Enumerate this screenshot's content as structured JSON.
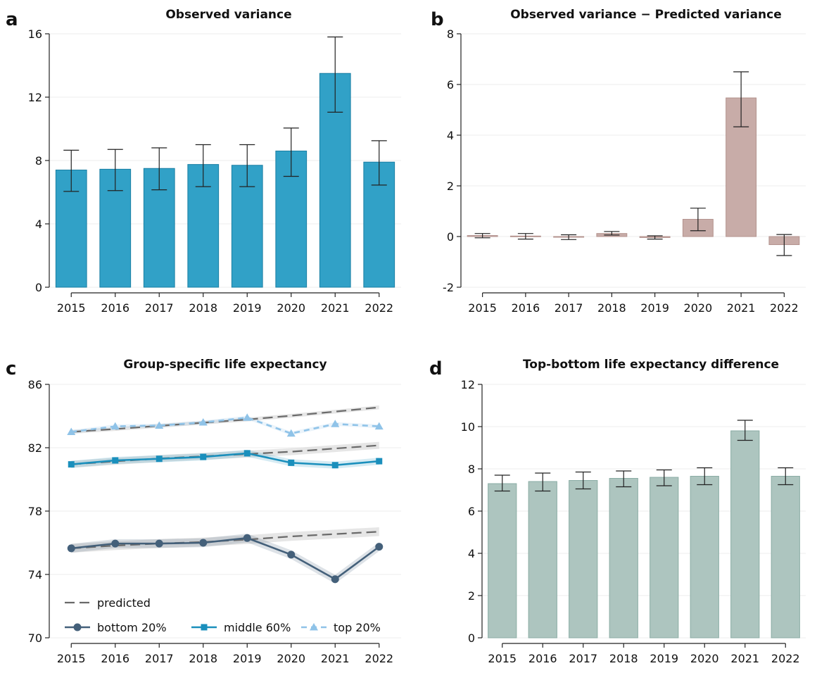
{
  "figure": {
    "panel_letters": [
      "a",
      "b",
      "c",
      "d"
    ]
  },
  "chart_data": [
    {
      "panel": "a",
      "type": "bar",
      "title": "Observed variance",
      "categories": [
        "2015",
        "2016",
        "2017",
        "2018",
        "2019",
        "2020",
        "2021",
        "2022"
      ],
      "values": [
        7.4,
        7.45,
        7.5,
        7.75,
        7.7,
        8.6,
        13.5,
        7.9
      ],
      "error_low": [
        6.05,
        6.1,
        6.15,
        6.35,
        6.35,
        7.0,
        11.05,
        6.45
      ],
      "error_high": [
        8.65,
        8.7,
        8.8,
        9.0,
        9.0,
        10.05,
        15.8,
        9.25
      ],
      "yticks": [
        0,
        4,
        8,
        12,
        16
      ],
      "ylim": [
        0,
        16
      ],
      "color": "#31a1c7",
      "edge_color": "#1a7fa3"
    },
    {
      "panel": "b",
      "type": "bar",
      "title": "Observed variance − Predicted variance",
      "categories": [
        "2015",
        "2016",
        "2017",
        "2018",
        "2019",
        "2020",
        "2021",
        "2022"
      ],
      "values": [
        0.04,
        0.02,
        -0.02,
        0.12,
        -0.04,
        0.68,
        5.47,
        -0.32
      ],
      "error_low": [
        -0.05,
        -0.1,
        -0.12,
        0.06,
        -0.1,
        0.23,
        4.33,
        -0.75
      ],
      "error_high": [
        0.12,
        0.12,
        0.07,
        0.2,
        0.03,
        1.12,
        6.5,
        0.08
      ],
      "yticks": [
        -2,
        0,
        2,
        4,
        6,
        8
      ],
      "ylim": [
        -2,
        8
      ],
      "color": "#c8aca8",
      "edge_color": "#b3928d"
    },
    {
      "panel": "c",
      "type": "line",
      "title": "Group-specific life expectancy",
      "x": [
        "2015",
        "2016",
        "2017",
        "2018",
        "2019",
        "2020",
        "2021",
        "2022"
      ],
      "yticks": [
        70,
        74,
        78,
        82,
        86
      ],
      "ylim": [
        70,
        86
      ],
      "series": [
        {
          "name": "top 20%",
          "marker": "triangle",
          "style": "dashed",
          "color": "#8fc3e8",
          "values": [
            83.0,
            83.35,
            83.4,
            83.6,
            83.9,
            82.9,
            83.5,
            83.35
          ],
          "predicted": [
            83.0,
            83.18,
            83.38,
            83.58,
            83.78,
            84.02,
            84.28,
            84.55
          ],
          "band": 0.12
        },
        {
          "name": "middle 60%",
          "marker": "square",
          "style": "solid",
          "color": "#1a8fbc",
          "values": [
            80.95,
            81.2,
            81.3,
            81.42,
            81.65,
            81.05,
            80.9,
            81.15
          ],
          "predicted": [
            80.95,
            81.14,
            81.32,
            81.46,
            81.6,
            81.75,
            81.95,
            82.15
          ],
          "band": 0.22
        },
        {
          "name": "bottom 20%",
          "marker": "circle",
          "style": "solid",
          "color": "#44607a",
          "values": [
            75.65,
            75.95,
            75.95,
            76.0,
            76.3,
            75.25,
            73.7,
            75.75
          ],
          "predicted": [
            75.65,
            75.82,
            75.95,
            76.05,
            76.2,
            76.4,
            76.55,
            76.7
          ],
          "band": 0.28
        }
      ],
      "predicted_label": "predicted",
      "predicted_color": "#6a6a6a",
      "band_color": "#dcdcdc",
      "legend": [
        "predicted",
        "bottom 20%",
        "middle 60%",
        "top 20%"
      ]
    },
    {
      "panel": "d",
      "type": "bar",
      "title": "Top-bottom life expectancy difference",
      "categories": [
        "2015",
        "2016",
        "2017",
        "2018",
        "2019",
        "2020",
        "2021",
        "2022"
      ],
      "values": [
        7.3,
        7.4,
        7.45,
        7.55,
        7.6,
        7.65,
        9.8,
        7.65
      ],
      "error_low": [
        6.95,
        6.95,
        7.05,
        7.15,
        7.2,
        7.25,
        9.35,
        7.25
      ],
      "error_high": [
        7.7,
        7.8,
        7.85,
        7.9,
        7.95,
        8.05,
        10.3,
        8.05
      ],
      "yticks": [
        0,
        2,
        4,
        6,
        8,
        10,
        12
      ],
      "ylim": [
        0,
        12
      ],
      "color": "#adc5bf",
      "edge_color": "#8aaca4"
    }
  ]
}
